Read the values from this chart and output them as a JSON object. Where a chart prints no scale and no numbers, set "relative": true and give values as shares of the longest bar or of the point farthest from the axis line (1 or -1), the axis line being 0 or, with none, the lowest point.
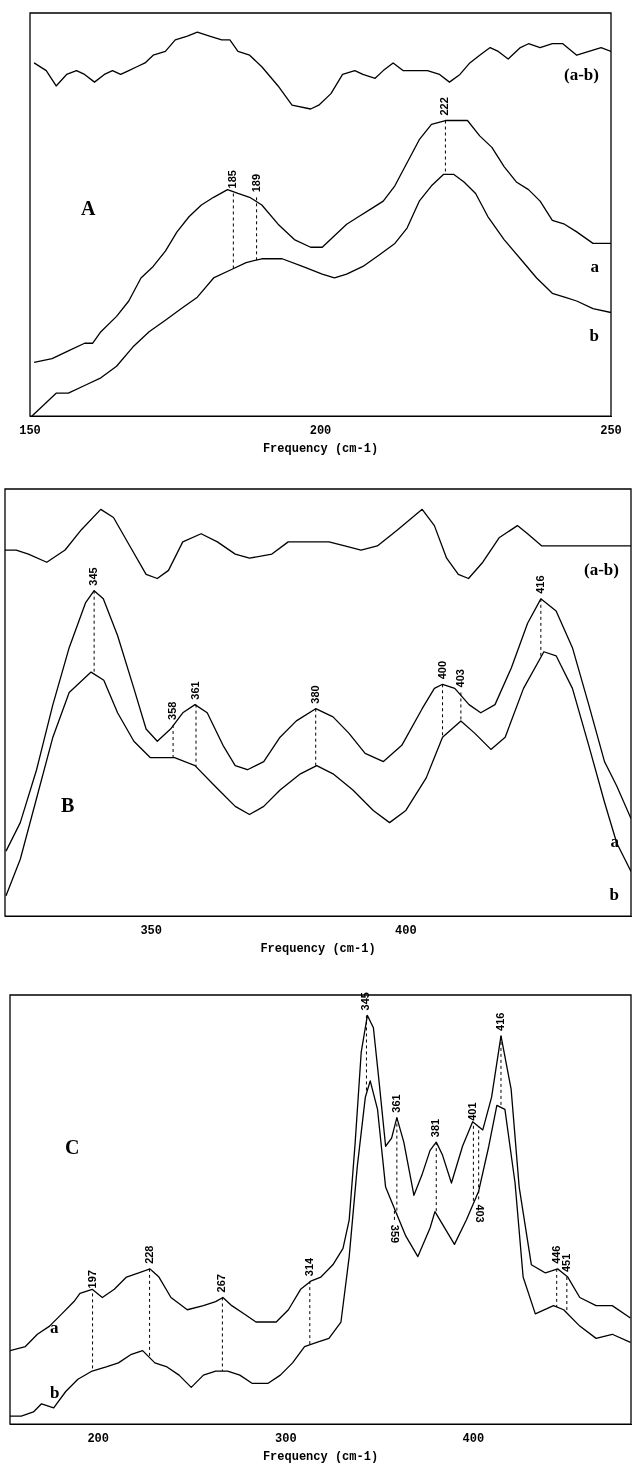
{
  "chart_data": [
    {
      "type": "line",
      "title": "A",
      "xlabel": "Frequency (cm-1)",
      "relative": true,
      "xlim": [
        150,
        250
      ],
      "xticks": [
        150,
        200,
        250
      ],
      "grid": false,
      "legend": false,
      "series": [
        {
          "name": "a",
          "color": "#000000",
          "x": [
            150.7,
            153.8,
            156.6,
            159.4,
            160.8,
            162.2,
            164.9,
            167.0,
            169.1,
            171.2,
            173.3,
            175.3,
            177.4,
            179.5,
            181.6,
            184.0,
            185.8,
            187.8,
            189.9,
            192.7,
            195.5,
            198.3,
            200.3,
            202.4,
            204.5,
            206.6,
            208.7,
            210.8,
            212.8,
            214.9,
            217.0,
            219.1,
            221.5,
            223.3,
            225.3,
            227.4,
            229.5,
            231.6,
            233.7,
            235.8,
            237.8,
            239.9,
            242.0,
            244.1,
            246.9,
            250.0
          ],
          "values": [
            0.14,
            0.15,
            0.17,
            0.19,
            0.19,
            0.22,
            0.26,
            0.3,
            0.36,
            0.39,
            0.43,
            0.48,
            0.52,
            0.55,
            0.57,
            0.59,
            0.58,
            0.57,
            0.55,
            0.5,
            0.46,
            0.44,
            0.44,
            0.47,
            0.5,
            0.52,
            0.54,
            0.56,
            0.6,
            0.66,
            0.72,
            0.76,
            0.77,
            0.77,
            0.77,
            0.73,
            0.7,
            0.65,
            0.61,
            0.59,
            0.56,
            0.51,
            0.5,
            0.48,
            0.45,
            0.45
          ]
        },
        {
          "name": "b",
          "color": "#000000",
          "x": [
            150.3,
            152.4,
            154.5,
            156.6,
            159.4,
            162.2,
            164.9,
            167.7,
            170.5,
            173.3,
            176.0,
            178.8,
            181.6,
            184.4,
            187.2,
            189.9,
            193.4,
            196.9,
            200.3,
            202.4,
            204.5,
            207.3,
            210.1,
            212.8,
            214.9,
            217.0,
            219.1,
            221.2,
            222.9,
            224.7,
            226.7,
            228.8,
            231.6,
            234.4,
            237.2,
            239.9,
            242.0,
            244.1,
            246.9,
            250.0
          ],
          "values": [
            0.0,
            0.03,
            0.06,
            0.06,
            0.08,
            0.1,
            0.13,
            0.18,
            0.22,
            0.25,
            0.28,
            0.31,
            0.36,
            0.38,
            0.4,
            0.41,
            0.41,
            0.39,
            0.37,
            0.36,
            0.37,
            0.39,
            0.42,
            0.45,
            0.49,
            0.56,
            0.6,
            0.63,
            0.63,
            0.61,
            0.58,
            0.52,
            0.46,
            0.41,
            0.36,
            0.32,
            0.31,
            0.3,
            0.28,
            0.27
          ]
        },
        {
          "name": "(a-b)",
          "color": "#000000",
          "x": [
            150.7,
            152.8,
            154.5,
            156.3,
            158.0,
            159.4,
            161.1,
            162.8,
            164.2,
            165.6,
            167.0,
            168.4,
            169.8,
            171.2,
            173.3,
            175.0,
            177.1,
            178.8,
            180.9,
            183.0,
            184.4,
            185.8,
            187.8,
            189.9,
            192.7,
            195.1,
            198.3,
            199.7,
            201.8,
            203.8,
            205.9,
            207.3,
            209.4,
            210.8,
            212.5,
            214.2,
            216.3,
            218.4,
            220.5,
            222.2,
            224.0,
            225.7,
            227.4,
            229.2,
            230.6,
            232.3,
            234.4,
            235.8,
            237.8,
            239.9,
            241.7,
            244.1,
            246.2,
            248.3,
            250.0
          ],
          "values": [
            0.92,
            0.9,
            0.86,
            0.89,
            0.9,
            0.89,
            0.87,
            0.89,
            0.9,
            0.89,
            0.9,
            0.91,
            0.92,
            0.94,
            0.95,
            0.98,
            0.99,
            1.0,
            0.99,
            0.98,
            0.98,
            0.95,
            0.94,
            0.91,
            0.86,
            0.81,
            0.8,
            0.81,
            0.84,
            0.89,
            0.9,
            0.89,
            0.88,
            0.9,
            0.92,
            0.9,
            0.9,
            0.9,
            0.89,
            0.87,
            0.89,
            0.92,
            0.94,
            0.96,
            0.95,
            0.93,
            0.96,
            0.97,
            0.96,
            0.97,
            0.97,
            0.94,
            0.95,
            0.96,
            0.95
          ]
        }
      ],
      "annotations": [
        {
          "text": "185",
          "x": 185,
          "y": 0.58
        },
        {
          "text": "189",
          "x": 189,
          "y": 0.57
        },
        {
          "text": "222",
          "x": 221.5,
          "y": 0.77
        }
      ]
    },
    {
      "type": "line",
      "title": "B",
      "xlabel": "Frequency (cm-1)",
      "relative": true,
      "xlim": [
        321.3,
        444.2
      ],
      "xticks": [
        350,
        400
      ],
      "grid": false,
      "legend": false,
      "series": [
        {
          "name": "a",
          "color": "#000000",
          "x": [
            321.5,
            324.3,
            327.5,
            330.7,
            333.9,
            337.1,
            338.8,
            340.6,
            343.4,
            346.6,
            349.0,
            351.2,
            353.8,
            356.2,
            358.6,
            361.0,
            364.1,
            366.5,
            368.9,
            372.1,
            375.3,
            378.5,
            382.3,
            385.7,
            388.8,
            392.0,
            395.6,
            399.2,
            403.2,
            405.6,
            407.2,
            409.6,
            412.4,
            414.7,
            417.5,
            420.7,
            423.9,
            426.5,
            429.5,
            432.7,
            435.9,
            439.0,
            441.4,
            444.2
          ],
          "values": [
            0.16,
            0.23,
            0.36,
            0.52,
            0.66,
            0.77,
            0.8,
            0.78,
            0.69,
            0.56,
            0.46,
            0.43,
            0.46,
            0.5,
            0.52,
            0.5,
            0.42,
            0.37,
            0.36,
            0.38,
            0.44,
            0.48,
            0.51,
            0.49,
            0.45,
            0.4,
            0.38,
            0.42,
            0.51,
            0.56,
            0.57,
            0.56,
            0.52,
            0.5,
            0.52,
            0.61,
            0.72,
            0.78,
            0.75,
            0.66,
            0.52,
            0.38,
            0.32,
            0.24
          ]
        },
        {
          "name": "b",
          "color": "#000000",
          "x": [
            321.5,
            324.3,
            327.5,
            330.7,
            333.9,
            338.2,
            340.7,
            343.4,
            346.6,
            349.8,
            354.6,
            358.6,
            362.5,
            366.5,
            369.3,
            372.1,
            375.3,
            379.3,
            382.5,
            385.7,
            389.6,
            393.6,
            396.8,
            400.0,
            404.0,
            407.2,
            410.8,
            413.5,
            416.7,
            419.5,
            423.1,
            427.1,
            429.5,
            432.7,
            435.9,
            439.0,
            441.4,
            444.2
          ],
          "values": [
            0.05,
            0.14,
            0.29,
            0.44,
            0.55,
            0.6,
            0.58,
            0.5,
            0.43,
            0.39,
            0.39,
            0.37,
            0.32,
            0.27,
            0.25,
            0.27,
            0.31,
            0.35,
            0.37,
            0.35,
            0.31,
            0.26,
            0.23,
            0.26,
            0.34,
            0.44,
            0.48,
            0.45,
            0.41,
            0.44,
            0.56,
            0.65,
            0.64,
            0.56,
            0.42,
            0.28,
            0.18,
            0.11
          ]
        },
        {
          "name": "(a-b)",
          "color": "#000000",
          "x": [
            321.3,
            323.5,
            325.9,
            329.5,
            333.1,
            336.3,
            340.1,
            342.6,
            345.8,
            349.0,
            351.2,
            353.4,
            356.2,
            359.8,
            363.0,
            366.5,
            369.3,
            373.7,
            376.9,
            380.1,
            384.9,
            388.0,
            391.2,
            394.4,
            398.4,
            403.2,
            405.6,
            408.0,
            410.3,
            412.3,
            415.1,
            418.3,
            421.9,
            423.9,
            426.7,
            431.1,
            435.1,
            439.0,
            444.2
          ],
          "values": [
            0.9,
            0.9,
            0.89,
            0.87,
            0.9,
            0.95,
            1.0,
            0.98,
            0.91,
            0.84,
            0.83,
            0.85,
            0.92,
            0.94,
            0.92,
            0.89,
            0.88,
            0.89,
            0.92,
            0.92,
            0.92,
            0.91,
            0.9,
            0.91,
            0.95,
            1.0,
            0.96,
            0.88,
            0.84,
            0.83,
            0.87,
            0.93,
            0.96,
            0.94,
            0.91,
            0.91,
            0.91,
            0.91,
            0.91
          ]
        }
      ],
      "annotations": [
        {
          "text": "345",
          "x": 338.8,
          "y": 0.8
        },
        {
          "text": "358",
          "x": 354.3,
          "y": 0.47
        },
        {
          "text": "361",
          "x": 358.8,
          "y": 0.52
        },
        {
          "text": "380",
          "x": 382.3,
          "y": 0.51
        },
        {
          "text": "400",
          "x": 407.2,
          "y": 0.57
        },
        {
          "text": "403",
          "x": 410.8,
          "y": 0.55
        },
        {
          "text": "416",
          "x": 426.5,
          "y": 0.78
        }
      ]
    },
    {
      "type": "line",
      "title": "C",
      "xlabel": "Frequency (cm-1)",
      "relative": true,
      "xlim": [
        153,
        484
      ],
      "xticks": [
        200,
        300,
        400
      ],
      "grid": false,
      "legend": false,
      "series": [
        {
          "name": "a",
          "color": "#000000",
          "x": [
            153.0,
            161.2,
            167.6,
            174.1,
            180.6,
            187.1,
            190.3,
            196.8,
            202.2,
            208.6,
            215.1,
            221.6,
            227.6,
            232.4,
            238.8,
            247.5,
            256.1,
            262.6,
            266.5,
            271.2,
            277.7,
            284.1,
            294.9,
            301.4,
            307.9,
            313.3,
            318.7,
            325.1,
            330.5,
            333.8,
            337.0,
            340.2,
            343.5,
            346.7,
            349.9,
            353.2,
            356.4,
            359.2,
            362.9,
            368.3,
            372.6,
            376.9,
            380.2,
            383.4,
            388.3,
            394.2,
            399.6,
            405.0,
            409.7,
            414.7,
            420.1,
            424.4,
            430.9,
            438.4,
            444.9,
            450.3,
            456.7,
            465.4,
            474.0,
            483.7
          ],
          "values": [
            0.18,
            0.19,
            0.22,
            0.24,
            0.27,
            0.3,
            0.32,
            0.33,
            0.31,
            0.33,
            0.36,
            0.37,
            0.38,
            0.36,
            0.31,
            0.28,
            0.29,
            0.3,
            0.31,
            0.29,
            0.27,
            0.25,
            0.25,
            0.28,
            0.33,
            0.35,
            0.36,
            0.39,
            0.43,
            0.5,
            0.69,
            0.91,
            1.0,
            0.97,
            0.83,
            0.68,
            0.7,
            0.75,
            0.69,
            0.56,
            0.61,
            0.67,
            0.69,
            0.66,
            0.59,
            0.68,
            0.74,
            0.72,
            0.8,
            0.95,
            0.82,
            0.58,
            0.39,
            0.37,
            0.38,
            0.36,
            0.31,
            0.29,
            0.29,
            0.26
          ]
        },
        {
          "name": "b",
          "color": "#000000",
          "x": [
            153.0,
            159.0,
            165.5,
            169.8,
            176.3,
            182.7,
            189.2,
            196.8,
            204.3,
            210.8,
            217.3,
            223.7,
            230.2,
            236.7,
            243.1,
            249.6,
            256.1,
            262.6,
            269.0,
            275.5,
            282.0,
            290.6,
            297.1,
            303.6,
            310.0,
            316.5,
            323.0,
            329.4,
            333.8,
            338.1,
            342.4,
            345.0,
            348.9,
            353.2,
            358.6,
            364.0,
            370.4,
            376.9,
            379.5,
            383.4,
            389.9,
            396.3,
            402.8,
            408.2,
            412.5,
            416.8,
            422.2,
            426.5,
            433.0,
            442.7,
            448.1,
            456.7,
            465.4,
            474.0,
            483.7
          ],
          "values": [
            0.02,
            0.02,
            0.03,
            0.05,
            0.04,
            0.08,
            0.11,
            0.13,
            0.14,
            0.15,
            0.17,
            0.18,
            0.15,
            0.14,
            0.12,
            0.09,
            0.12,
            0.13,
            0.13,
            0.12,
            0.1,
            0.1,
            0.12,
            0.15,
            0.19,
            0.2,
            0.21,
            0.25,
            0.41,
            0.63,
            0.8,
            0.84,
            0.77,
            0.58,
            0.52,
            0.46,
            0.41,
            0.48,
            0.52,
            0.49,
            0.44,
            0.5,
            0.57,
            0.68,
            0.78,
            0.77,
            0.59,
            0.36,
            0.27,
            0.29,
            0.28,
            0.24,
            0.21,
            0.22,
            0.2
          ]
        }
      ],
      "annotations": [
        {
          "text": "197",
          "x": 197.0,
          "y": 0.32
        },
        {
          "text": "228",
          "x": 227.4,
          "y": 0.38
        },
        {
          "text": "267",
          "x": 266.2,
          "y": 0.31
        },
        {
          "text": "314",
          "x": 312.8,
          "y": 0.35
        },
        {
          "text": "345",
          "x": 343.0,
          "y": 1.0
        },
        {
          "text": "361",
          "x": 359.2,
          "y": 0.75
        },
        {
          "text": "359",
          "x": 357.9,
          "y": 0.5
        },
        {
          "text": "381",
          "x": 380.2,
          "y": 0.69
        },
        {
          "text": "401",
          "x": 400.0,
          "y": 0.73
        },
        {
          "text": "403",
          "x": 402.8,
          "y": 0.55
        },
        {
          "text": "416",
          "x": 414.7,
          "y": 0.95
        },
        {
          "text": "446",
          "x": 444.4,
          "y": 0.38
        },
        {
          "text": "451",
          "x": 449.8,
          "y": 0.36
        }
      ]
    }
  ]
}
